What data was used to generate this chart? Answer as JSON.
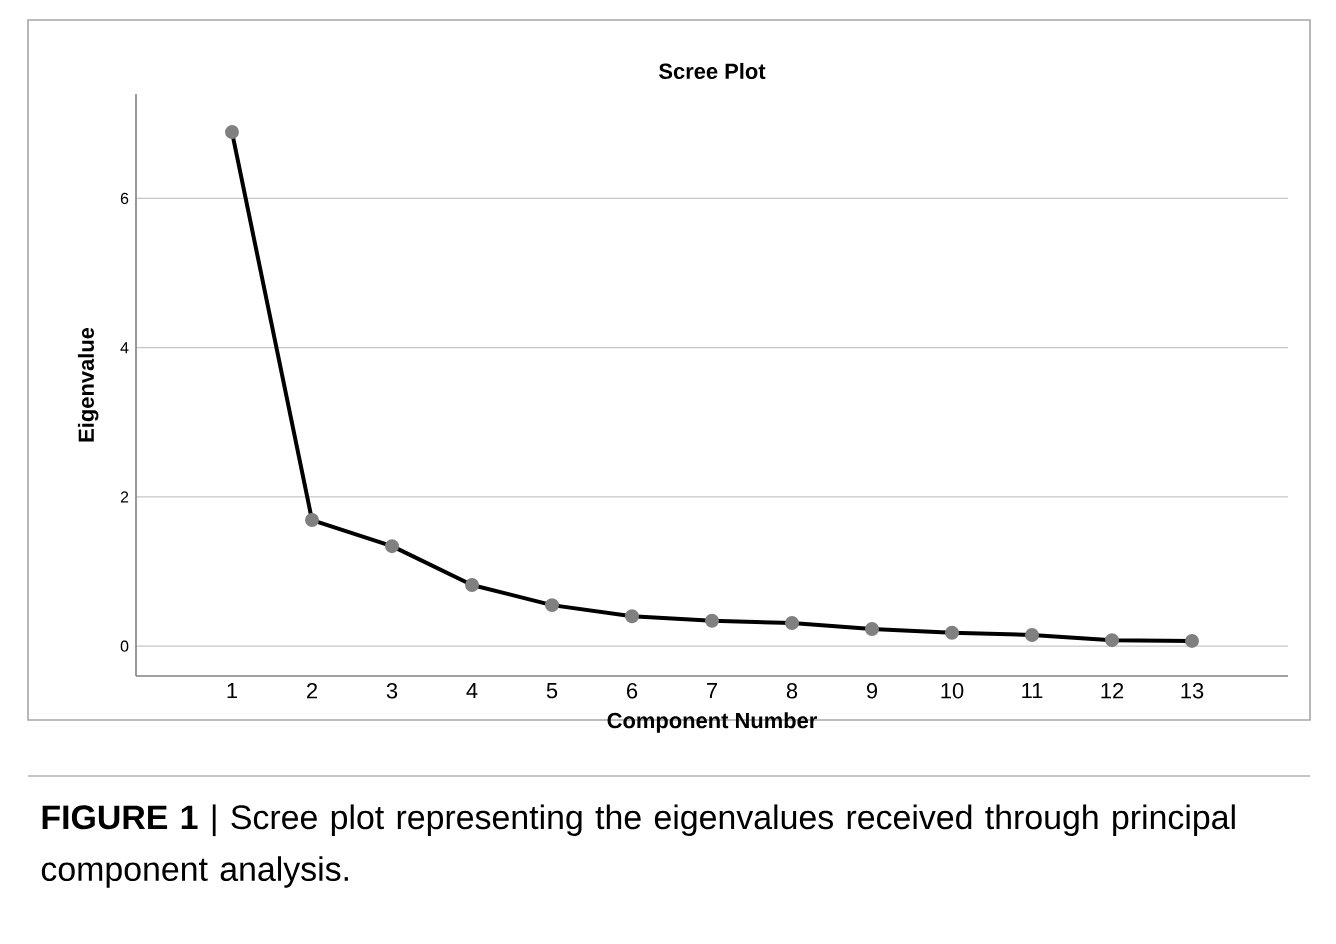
{
  "chart_data": {
    "type": "line",
    "title": "Scree Plot",
    "xlabel": "Component Number",
    "ylabel": "Eigenvalue",
    "categories": [
      "1",
      "2",
      "3",
      "4",
      "5",
      "6",
      "7",
      "8",
      "9",
      "10",
      "11",
      "12",
      "13"
    ],
    "series": [
      {
        "color": "#000000",
        "values": [
          6.89,
          1.69,
          1.34,
          0.82,
          0.55,
          0.4,
          0.34,
          0.31,
          0.23,
          0.18,
          0.15,
          0.08,
          0.07
        ]
      }
    ],
    "marker": "circle",
    "line_style": "solid",
    "grid": "y",
    "ylim": [
      -0.4,
      7.4
    ],
    "yticks": [
      0,
      2,
      4,
      6
    ],
    "annotations": [
      "**FIGURE 1** | Scree plot representing the eigenvalues received through principal component analysis."
    ]
  }
}
